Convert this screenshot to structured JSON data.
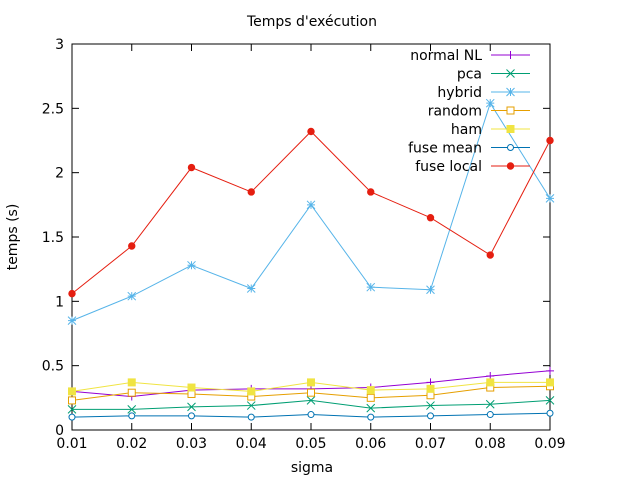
{
  "chart_data": {
    "type": "line",
    "title": "Temps d'exécution",
    "xlabel": "sigma",
    "ylabel": "temps (s)",
    "xlim": [
      0.01,
      0.09
    ],
    "ylim": [
      0,
      3
    ],
    "x": [
      0.01,
      0.02,
      0.03,
      0.04,
      0.05,
      0.06,
      0.07,
      0.08,
      0.09
    ],
    "x_tick_labels": [
      "0.01",
      "0.02",
      "0.03",
      "0.04",
      "0.05",
      "0.06",
      "0.07",
      "0.08",
      "0.09"
    ],
    "y_ticks": [
      0,
      0.5,
      1,
      1.5,
      2,
      2.5,
      3
    ],
    "y_tick_labels": [
      "0",
      "0.5",
      "1",
      "1.5",
      "2",
      "2.5",
      "3"
    ],
    "grid": false,
    "legend_position": "top-right",
    "series": [
      {
        "name": "normal NL",
        "color": "#9400d3",
        "marker": "plus",
        "values": [
          0.3,
          0.26,
          0.31,
          0.32,
          0.32,
          0.33,
          0.37,
          0.42,
          0.46
        ]
      },
      {
        "name": "pca",
        "color": "#009e73",
        "marker": "cross",
        "values": [
          0.16,
          0.16,
          0.18,
          0.19,
          0.23,
          0.17,
          0.19,
          0.2,
          0.23
        ]
      },
      {
        "name": "hybrid",
        "color": "#56b4e9",
        "marker": "star",
        "values": [
          0.85,
          1.04,
          1.28,
          1.1,
          1.75,
          1.11,
          1.09,
          2.54,
          1.8
        ]
      },
      {
        "name": "random",
        "color": "#e69f00",
        "marker": "open-square",
        "values": [
          0.23,
          0.29,
          0.28,
          0.26,
          0.29,
          0.25,
          0.27,
          0.33,
          0.34
        ]
      },
      {
        "name": "ham",
        "color": "#f0e442",
        "marker": "filled-square",
        "values": [
          0.3,
          0.37,
          0.33,
          0.3,
          0.37,
          0.31,
          0.32,
          0.37,
          0.37
        ]
      },
      {
        "name": "fuse mean",
        "color": "#0072b2",
        "marker": "open-circle",
        "values": [
          0.1,
          0.11,
          0.11,
          0.1,
          0.12,
          0.1,
          0.11,
          0.12,
          0.13
        ]
      },
      {
        "name": "fuse local",
        "color": "#e51e10",
        "marker": "filled-circle",
        "values": [
          1.06,
          1.43,
          2.04,
          1.85,
          2.32,
          1.85,
          1.65,
          1.36,
          2.25
        ]
      }
    ]
  }
}
